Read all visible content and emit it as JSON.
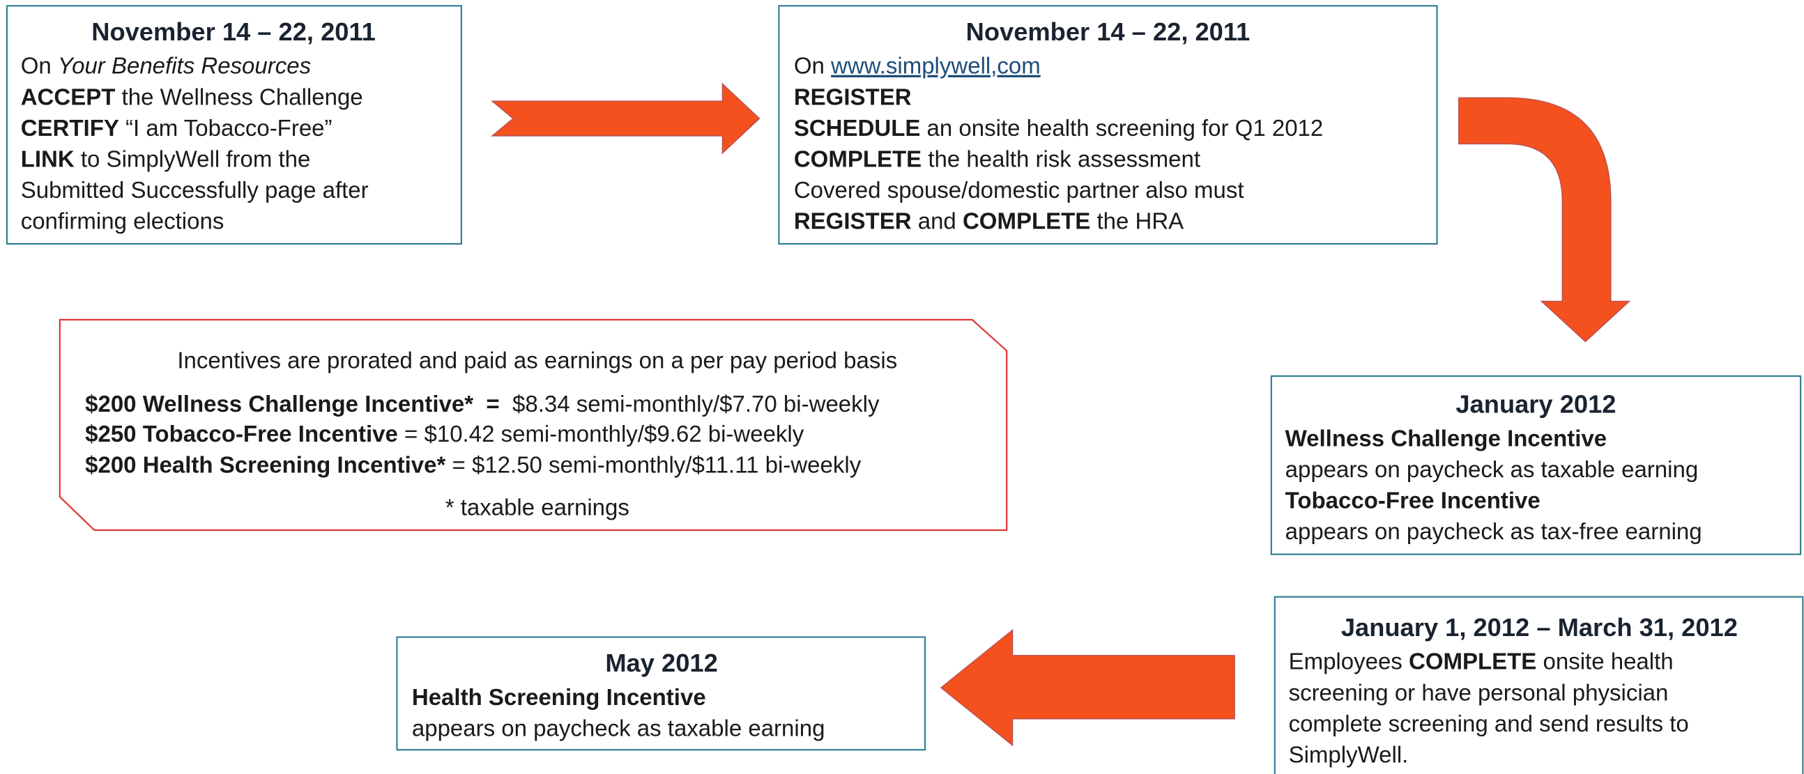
{
  "boxes": [
    {
      "title": "November 14 – 22, 2011",
      "lines": [
        [
          "On ",
          "Your Benefits Resources"
        ],
        [
          "ACCEPT",
          " the Wellness Challenge"
        ],
        [
          "CERTIFY",
          " “I am Tobacco-Free”"
        ],
        [
          "LINK",
          " to SimplyWell from the"
        ],
        [
          "Submitted Successfully page after"
        ],
        [
          "confirming elections"
        ]
      ]
    },
    {
      "title": "November 14 – 22, 2011",
      "lines": [
        [
          "On ",
          "www.simplywell,com"
        ],
        [
          "REGISTER"
        ],
        [
          "SCHEDULE",
          " an onsite health screening for Q1 2012"
        ],
        [
          "COMPLETE",
          " the health risk assessment"
        ],
        [
          "Covered spouse/domestic partner also must"
        ],
        [
          "REGISTER",
          " and ",
          "COMPLETE",
          " the HRA"
        ]
      ]
    },
    {
      "title": "January 2012",
      "lines": [
        [
          "Wellness Challenge Incentive"
        ],
        [
          "appears on paycheck as taxable earning"
        ],
        [
          "Tobacco-Free Incentive"
        ],
        [
          "appears on paycheck as tax-free earning"
        ]
      ]
    },
    {
      "title": "January 1, 2012 – March 31, 2012",
      "lines": [
        [
          "Employees ",
          "COMPLETE",
          " onsite health"
        ],
        [
          "screening or have personal physician"
        ],
        [
          "complete screening and send results to"
        ],
        [
          "SimplyWell."
        ]
      ]
    },
    {
      "title": "May 2012",
      "lines": [
        [
          "Health Screening Incentive"
        ],
        [
          "appears on paycheck as taxable earning"
        ]
      ]
    }
  ],
  "incentives": {
    "intro": "Incentives are prorated and paid as earnings on a per pay period basis",
    "lines": [
      [
        "$200 Wellness Challenge Incentive*  =",
        "  $8.34 semi-monthly/$7.70 bi-weekly"
      ],
      [
        "$250 Tobacco-Free Incentive",
        " = $10.42 semi-monthly/$9.62 bi-weekly"
      ],
      [
        "$200 Health Screening Incentive*",
        " = $12.50 semi-monthly/$11.11 bi-weekly"
      ]
    ],
    "note": "* taxable earnings"
  }
}
